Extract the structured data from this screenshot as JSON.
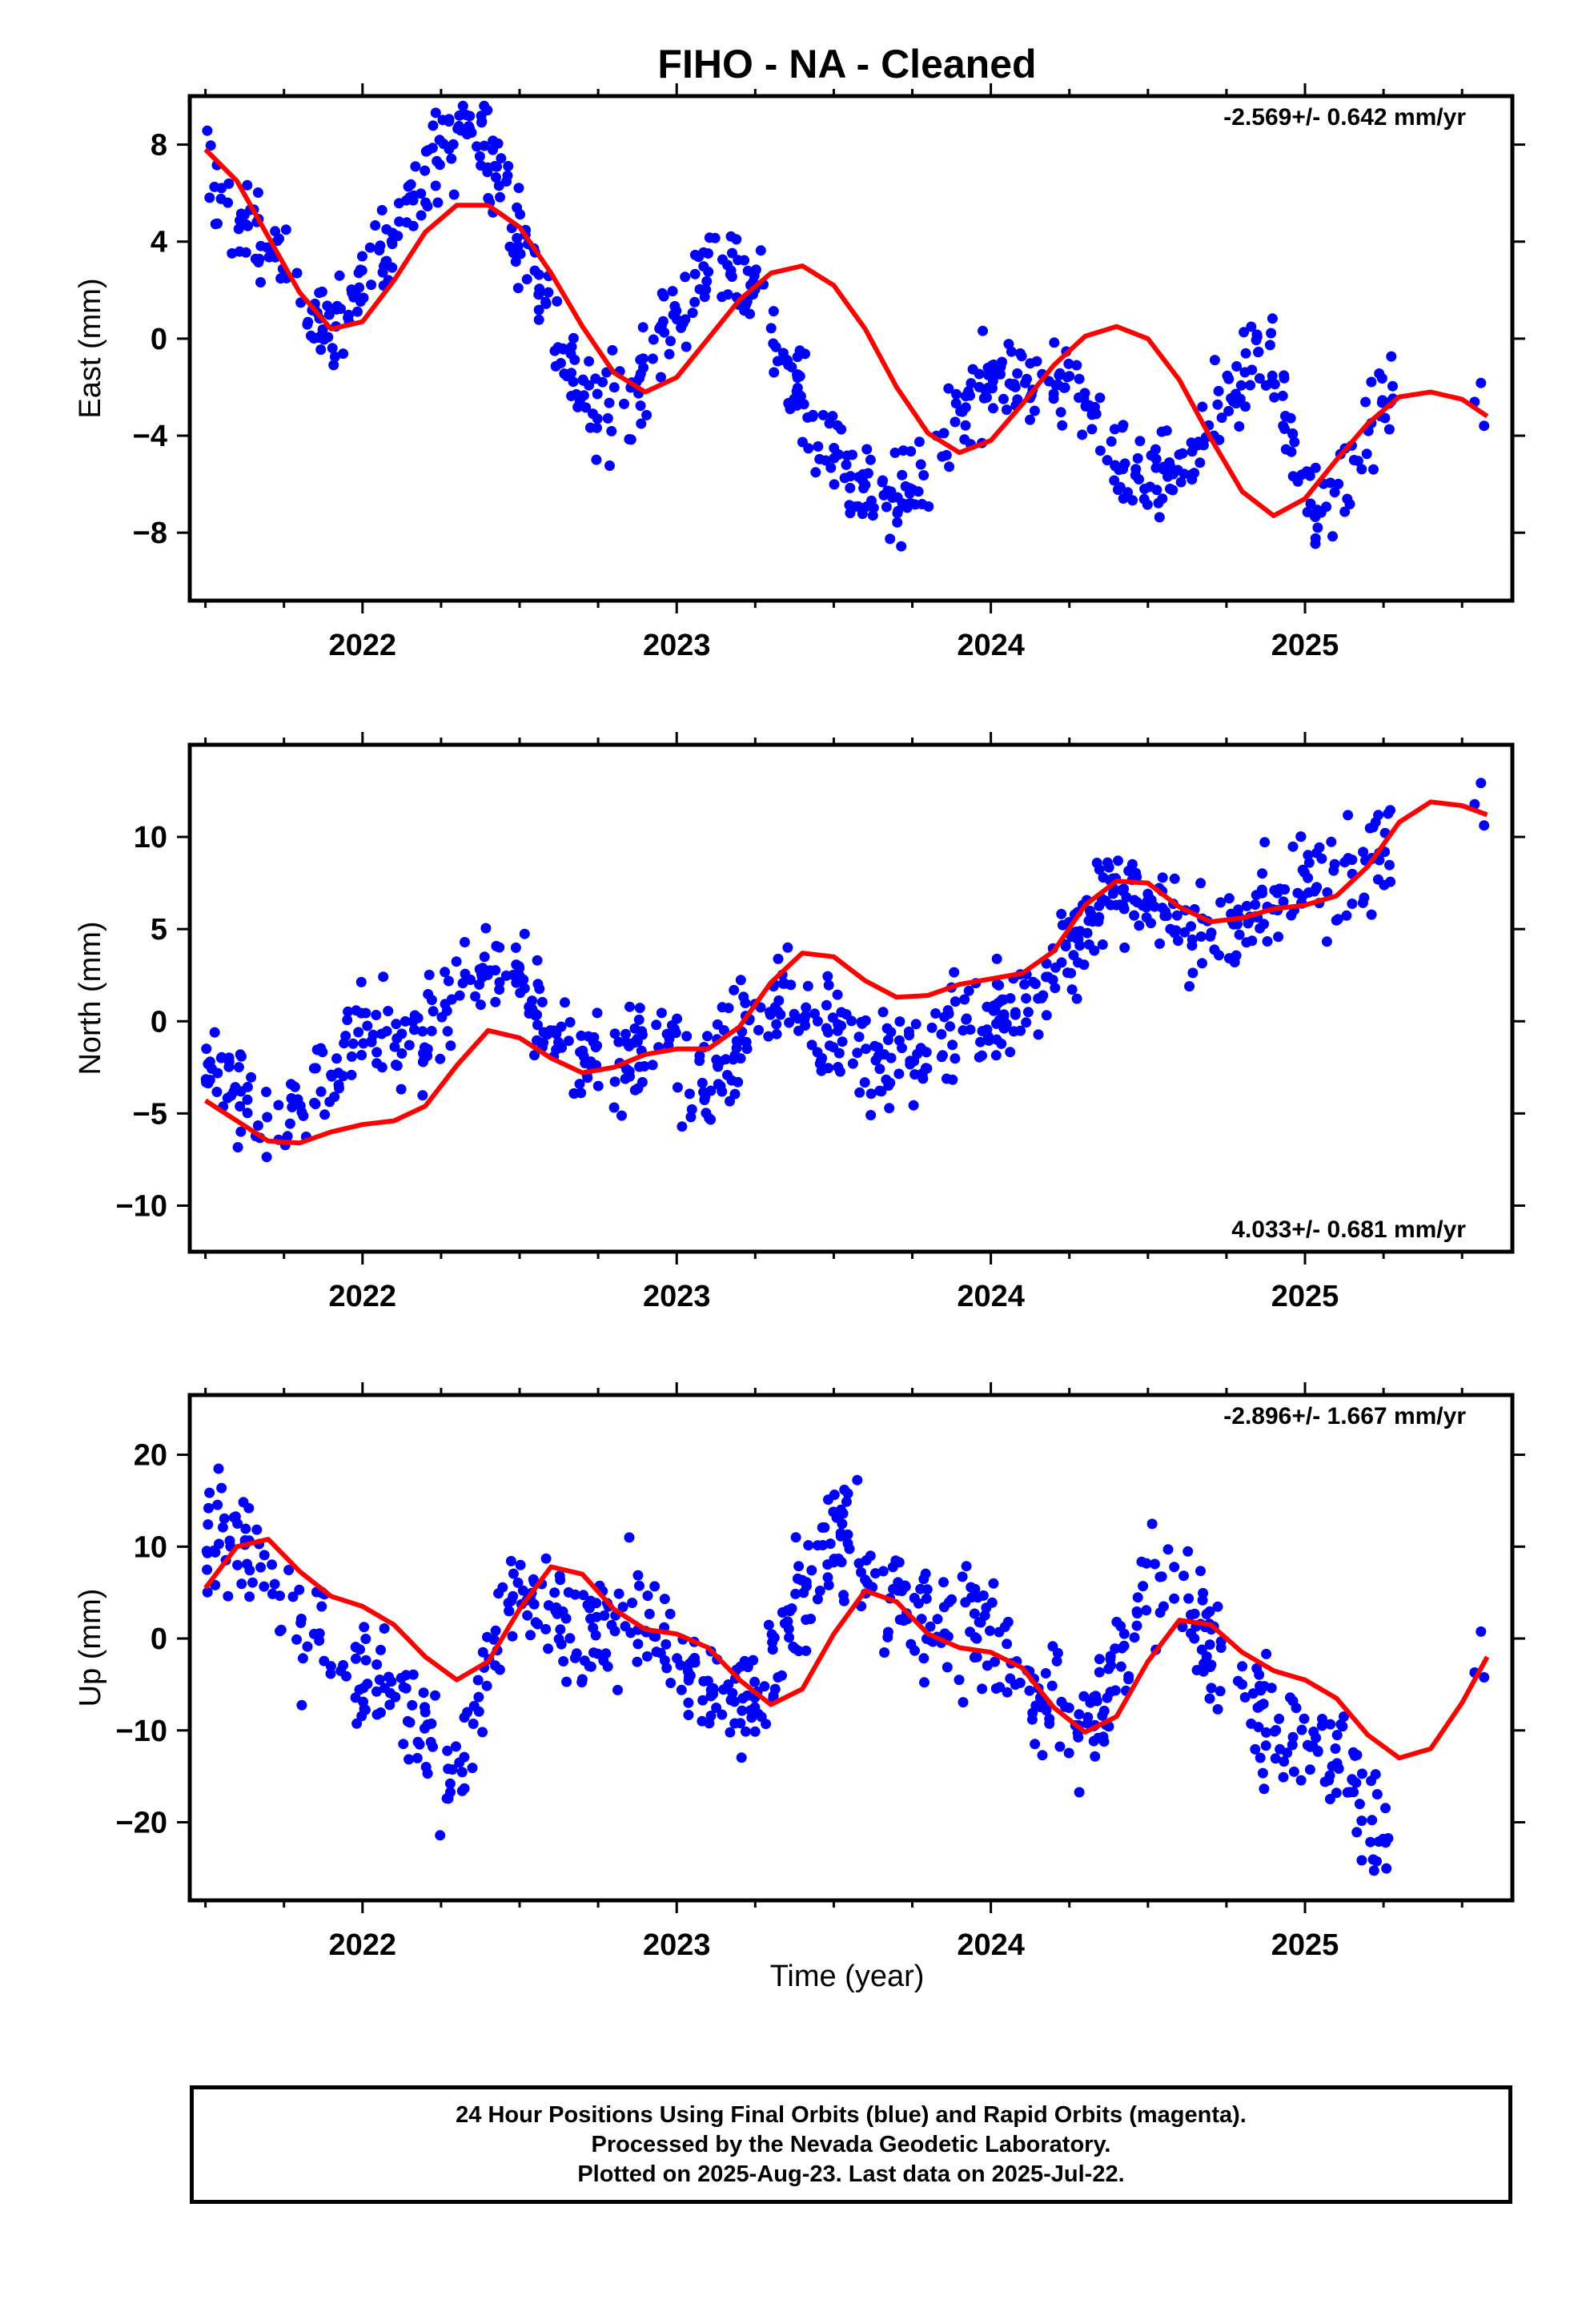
{
  "figure": {
    "title": "FIHO  - NA - Cleaned",
    "xlabel": "Time (year)",
    "footer": [
      "24 Hour Positions Using Final Orbits (blue) and Rapid Orbits (magenta).",
      "Processed by the Nevada Geodetic Laboratory.",
      "Plotted on 2025-Aug-23. Last data on 2025-Jul-22."
    ],
    "colors": {
      "points": "#0000ff",
      "fit": "#ff0000",
      "frame": "#000000"
    }
  },
  "chart_data": [
    {
      "type": "scatter",
      "panel": "east",
      "ylabel": "East (mm)",
      "rate": "-2.569+/- 0.642 mm/yr",
      "rate_position": "top-right",
      "xlim": [
        2021.45,
        2025.66
      ],
      "ylim": [
        -10.8,
        10.0
      ],
      "x_ticks": [
        2022,
        2023,
        2024,
        2025
      ],
      "y_ticks": [
        -8,
        -4,
        0,
        4,
        8
      ],
      "y_tick_labels": [
        "−8",
        "−4",
        "0",
        "4",
        "8"
      ],
      "fit": {
        "x": [
          2021.5,
          2021.6,
          2021.7,
          2021.8,
          2021.9,
          2022.0,
          2022.1,
          2022.2,
          2022.3,
          2022.4,
          2022.5,
          2022.6,
          2022.7,
          2022.8,
          2022.9,
          2023.0,
          2023.1,
          2023.2,
          2023.3,
          2023.4,
          2023.5,
          2023.6,
          2023.7,
          2023.8,
          2023.9,
          2024.0,
          2024.1,
          2024.2,
          2024.3,
          2024.4,
          2024.5,
          2024.6,
          2024.7,
          2024.8,
          2024.9,
          2025.0,
          2025.1,
          2025.2,
          2025.3,
          2025.4,
          2025.5,
          2025.58
        ],
        "y": [
          7.8,
          6.5,
          4.2,
          1.9,
          0.4,
          0.7,
          2.4,
          4.4,
          5.5,
          5.5,
          4.6,
          2.7,
          0.5,
          -1.4,
          -2.2,
          -1.6,
          0.0,
          1.6,
          2.7,
          3.0,
          2.2,
          0.4,
          -2.0,
          -3.9,
          -4.7,
          -4.2,
          -2.7,
          -1.1,
          0.1,
          0.5,
          0.0,
          -1.7,
          -4.1,
          -6.3,
          -7.3,
          -6.6,
          -5.0,
          -3.5,
          -2.4,
          -2.2,
          -2.5,
          -3.2
        ]
      },
      "points_x": [
        2021.5,
        2021.55,
        2021.6,
        2021.65,
        2021.7,
        2021.75,
        2021.8,
        2021.85,
        2021.9,
        2021.95,
        2022.0,
        2022.05,
        2022.1,
        2022.15,
        2022.2,
        2022.25,
        2022.3,
        2022.35,
        2022.4,
        2022.45,
        2022.5,
        2022.55,
        2022.6,
        2022.65,
        2022.7,
        2022.75,
        2022.8,
        2022.85,
        2022.9,
        2022.95,
        2023.0,
        2023.05,
        2023.1,
        2023.15,
        2023.2,
        2023.25,
        2023.3,
        2023.35,
        2023.4,
        2023.45,
        2023.5,
        2023.55,
        2023.6,
        2023.65,
        2023.7,
        2023.75,
        2023.8,
        2023.85,
        2023.9,
        2023.95,
        2024.0,
        2024.05,
        2024.1,
        2024.15,
        2024.2,
        2024.25,
        2024.3,
        2024.35,
        2024.4,
        2024.45,
        2024.5,
        2024.55,
        2024.6,
        2024.65,
        2024.7,
        2024.75,
        2024.8,
        2024.85,
        2024.9,
        2024.95,
        2025.0,
        2025.05,
        2025.1,
        2025.15,
        2025.2,
        2025.25
      ],
      "points_y": [
        7.0,
        6.0,
        5.2,
        4.8,
        3.8,
        3.0,
        1.6,
        0.8,
        0.2,
        1.0,
        2.6,
        3.4,
        4.2,
        5.6,
        6.8,
        8.0,
        8.6,
        8.4,
        7.6,
        6.0,
        4.2,
        2.6,
        1.0,
        -0.6,
        -2.4,
        -2.8,
        -2.9,
        -2.4,
        -1.3,
        -0.2,
        1.0,
        2.0,
        2.9,
        3.3,
        3.1,
        2.2,
        0.7,
        -1.0,
        -2.6,
        -4.0,
        -5.0,
        -5.6,
        -6.0,
        -6.8,
        -6.6,
        -6.0,
        -5.0,
        -4.0,
        -3.2,
        -2.4,
        -1.6,
        -1.4,
        -1.4,
        -1.6,
        -1.9,
        -2.2,
        -2.6,
        -3.2,
        -4.6,
        -5.6,
        -6.0,
        -5.8,
        -5.4,
        -4.6,
        -3.6,
        -2.4,
        -1.2,
        -0.4,
        -1.4,
        -3.8,
        -6.2,
        -7.0,
        -6.4,
        -5.2,
        -4.0,
        -2.4
      ],
      "points_spread": 1.2
    },
    {
      "type": "scatter",
      "panel": "north",
      "ylabel": "North (mm)",
      "rate": "4.033+/- 0.681 mm/yr",
      "rate_position": "bottom-right",
      "xlim": [
        2021.45,
        2025.66
      ],
      "ylim": [
        -12.5,
        15.0
      ],
      "x_ticks": [
        2022,
        2023,
        2024,
        2025
      ],
      "y_ticks": [
        -10,
        -5,
        0,
        5,
        10
      ],
      "y_tick_labels": [
        "−10",
        "−5",
        "0",
        "5",
        "10"
      ],
      "fit": {
        "x": [
          2021.5,
          2021.6,
          2021.7,
          2021.8,
          2021.9,
          2022.0,
          2022.1,
          2022.2,
          2022.3,
          2022.4,
          2022.5,
          2022.6,
          2022.7,
          2022.8,
          2022.9,
          2023.0,
          2023.1,
          2023.2,
          2023.3,
          2023.4,
          2023.5,
          2023.6,
          2023.7,
          2023.8,
          2023.9,
          2024.0,
          2024.1,
          2024.2,
          2024.3,
          2024.4,
          2024.5,
          2024.6,
          2024.7,
          2024.8,
          2024.9,
          2025.0,
          2025.1,
          2025.2,
          2025.3,
          2025.4,
          2025.5,
          2025.58
        ],
        "y": [
          -4.3,
          -5.4,
          -6.5,
          -6.6,
          -6.0,
          -5.6,
          -5.4,
          -4.6,
          -2.4,
          -0.5,
          -0.9,
          -2.0,
          -2.8,
          -2.5,
          -1.8,
          -1.5,
          -1.5,
          -0.3,
          2.1,
          3.7,
          3.5,
          2.2,
          1.3,
          1.4,
          2.0,
          2.3,
          2.6,
          3.8,
          6.3,
          7.6,
          7.5,
          6.2,
          5.4,
          5.6,
          6.1,
          6.3,
          6.8,
          8.4,
          10.8,
          11.9,
          11.7,
          11.2
        ]
      },
      "points_x": [
        2021.5,
        2021.55,
        2021.6,
        2021.65,
        2021.7,
        2021.75,
        2021.8,
        2021.85,
        2021.9,
        2021.95,
        2022.0,
        2022.05,
        2022.1,
        2022.15,
        2022.2,
        2022.25,
        2022.3,
        2022.35,
        2022.4,
        2022.45,
        2022.5,
        2022.55,
        2022.6,
        2022.65,
        2022.7,
        2022.75,
        2022.8,
        2022.85,
        2022.9,
        2022.95,
        2023.0,
        2023.05,
        2023.1,
        2023.15,
        2023.2,
        2023.25,
        2023.3,
        2023.35,
        2023.4,
        2023.45,
        2023.5,
        2023.55,
        2023.6,
        2023.65,
        2023.7,
        2023.75,
        2023.8,
        2023.85,
        2023.9,
        2023.95,
        2024.0,
        2024.05,
        2024.1,
        2024.15,
        2024.2,
        2024.25,
        2024.3,
        2024.35,
        2024.4,
        2024.45,
        2024.5,
        2024.55,
        2024.6,
        2024.65,
        2024.7,
        2024.75,
        2024.8,
        2024.85,
        2024.9,
        2024.95,
        2025.0,
        2025.05,
        2025.1,
        2025.15,
        2025.2,
        2025.25
      ],
      "points_y": [
        -2.0,
        -2.6,
        -3.6,
        -4.8,
        -5.4,
        -5.0,
        -4.6,
        -4.2,
        -3.0,
        -1.5,
        -0.6,
        -1.0,
        -1.5,
        -1.3,
        -0.6,
        0.6,
        1.8,
        2.3,
        2.5,
        2.6,
        2.0,
        0.6,
        -0.8,
        -1.5,
        -2.2,
        -2.4,
        -2.1,
        -1.4,
        -1.0,
        -1.3,
        -1.8,
        -2.6,
        -3.0,
        -2.0,
        -0.6,
        0.5,
        0.9,
        0.8,
        0.3,
        -0.3,
        -0.9,
        -1.5,
        -2.0,
        -1.8,
        -1.5,
        -1.4,
        -1.2,
        -0.8,
        -0.4,
        -0.1,
        0.1,
        0.3,
        0.6,
        1.2,
        2.5,
        4.0,
        5.4,
        6.6,
        7.2,
        7.0,
        6.4,
        5.6,
        4.8,
        4.4,
        4.6,
        5.2,
        5.8,
        6.2,
        6.6,
        7.0,
        7.4,
        7.8,
        8.0,
        8.4,
        9.0,
        9.6
      ],
      "points_spread": 1.6
    },
    {
      "type": "scatter",
      "panel": "up",
      "ylabel": "Up (mm)",
      "rate": "-2.896+/- 1.667 mm/yr",
      "rate_position": "top-right",
      "xlim": [
        2021.45,
        2025.66
      ],
      "ylim": [
        -28.5,
        26.5
      ],
      "x_ticks": [
        2022,
        2023,
        2024,
        2025
      ],
      "y_ticks": [
        -20,
        -10,
        0,
        10,
        20
      ],
      "y_tick_labels": [
        "−20",
        "−10",
        "0",
        "10",
        "20"
      ],
      "fit": {
        "x": [
          2021.5,
          2021.6,
          2021.7,
          2021.8,
          2021.9,
          2022.0,
          2022.1,
          2022.2,
          2022.3,
          2022.4,
          2022.5,
          2022.6,
          2022.7,
          2022.8,
          2022.9,
          2023.0,
          2023.1,
          2023.2,
          2023.3,
          2023.4,
          2023.5,
          2023.6,
          2023.7,
          2023.8,
          2023.9,
          2024.0,
          2024.1,
          2024.2,
          2024.3,
          2024.4,
          2024.5,
          2024.6,
          2024.7,
          2024.8,
          2024.9,
          2025.0,
          2025.1,
          2025.2,
          2025.3,
          2025.4,
          2025.5,
          2025.58
        ],
        "y": [
          5.5,
          10.0,
          10.8,
          7.3,
          4.6,
          3.5,
          1.5,
          -2.0,
          -4.5,
          -2.5,
          3.2,
          7.8,
          7.0,
          3.2,
          1.0,
          0.5,
          -1.0,
          -4.5,
          -7.2,
          -5.5,
          0.5,
          5.2,
          4.0,
          0.5,
          -1.0,
          -1.5,
          -3.2,
          -7.5,
          -10.2,
          -8.5,
          -2.5,
          2.0,
          1.5,
          -1.5,
          -3.5,
          -4.5,
          -6.5,
          -10.5,
          -13.0,
          -12.0,
          -7.0,
          -2.0
        ]
      },
      "points_x": [
        2021.5,
        2021.55,
        2021.6,
        2021.65,
        2021.7,
        2021.75,
        2021.8,
        2021.85,
        2021.9,
        2021.95,
        2022.0,
        2022.05,
        2022.1,
        2022.15,
        2022.2,
        2022.25,
        2022.3,
        2022.35,
        2022.4,
        2022.45,
        2022.5,
        2022.55,
        2022.6,
        2022.65,
        2022.7,
        2022.75,
        2022.8,
        2022.85,
        2022.9,
        2022.95,
        2023.0,
        2023.05,
        2023.1,
        2023.15,
        2023.2,
        2023.25,
        2023.3,
        2023.35,
        2023.4,
        2023.45,
        2023.5,
        2023.55,
        2023.6,
        2023.65,
        2023.7,
        2023.75,
        2023.8,
        2023.85,
        2023.9,
        2023.95,
        2024.0,
        2024.05,
        2024.1,
        2024.15,
        2024.2,
        2024.25,
        2024.3,
        2024.35,
        2024.4,
        2024.45,
        2024.5,
        2024.55,
        2024.6,
        2024.65,
        2024.7,
        2024.75,
        2024.8,
        2024.85,
        2024.9,
        2024.95,
        2025.0,
        2025.05,
        2025.1,
        2025.15,
        2025.2,
        2025.25
      ],
      "points_y": [
        11.0,
        12.5,
        11.5,
        10.0,
        7.0,
        4.0,
        2.0,
        0.5,
        -2.0,
        -3.5,
        -4.0,
        -5.0,
        -6.0,
        -8.5,
        -11.0,
        -15.0,
        -17.0,
        -8.0,
        -1.0,
        3.0,
        4.0,
        3.5,
        2.0,
        1.0,
        0.5,
        1.0,
        2.5,
        3.0,
        1.5,
        0.0,
        -1.5,
        -3.5,
        -5.0,
        -7.0,
        -8.5,
        -6.0,
        -3.0,
        0.5,
        4.0,
        6.5,
        10.0,
        10.5,
        9.0,
        7.0,
        5.0,
        3.0,
        2.0,
        1.5,
        1.0,
        0.0,
        -1.0,
        -2.5,
        -4.5,
        -6.0,
        -7.5,
        -8.5,
        -9.0,
        -7.0,
        -3.0,
        1.0,
        4.0,
        6.0,
        5.0,
        2.0,
        -1.0,
        -3.0,
        -5.0,
        -7.0,
        -9.0,
        -10.0,
        -11.0,
        -12.0,
        -13.5,
        -16.0,
        -19.0,
        -21.0
      ],
      "points_spread": 4.0
    }
  ]
}
